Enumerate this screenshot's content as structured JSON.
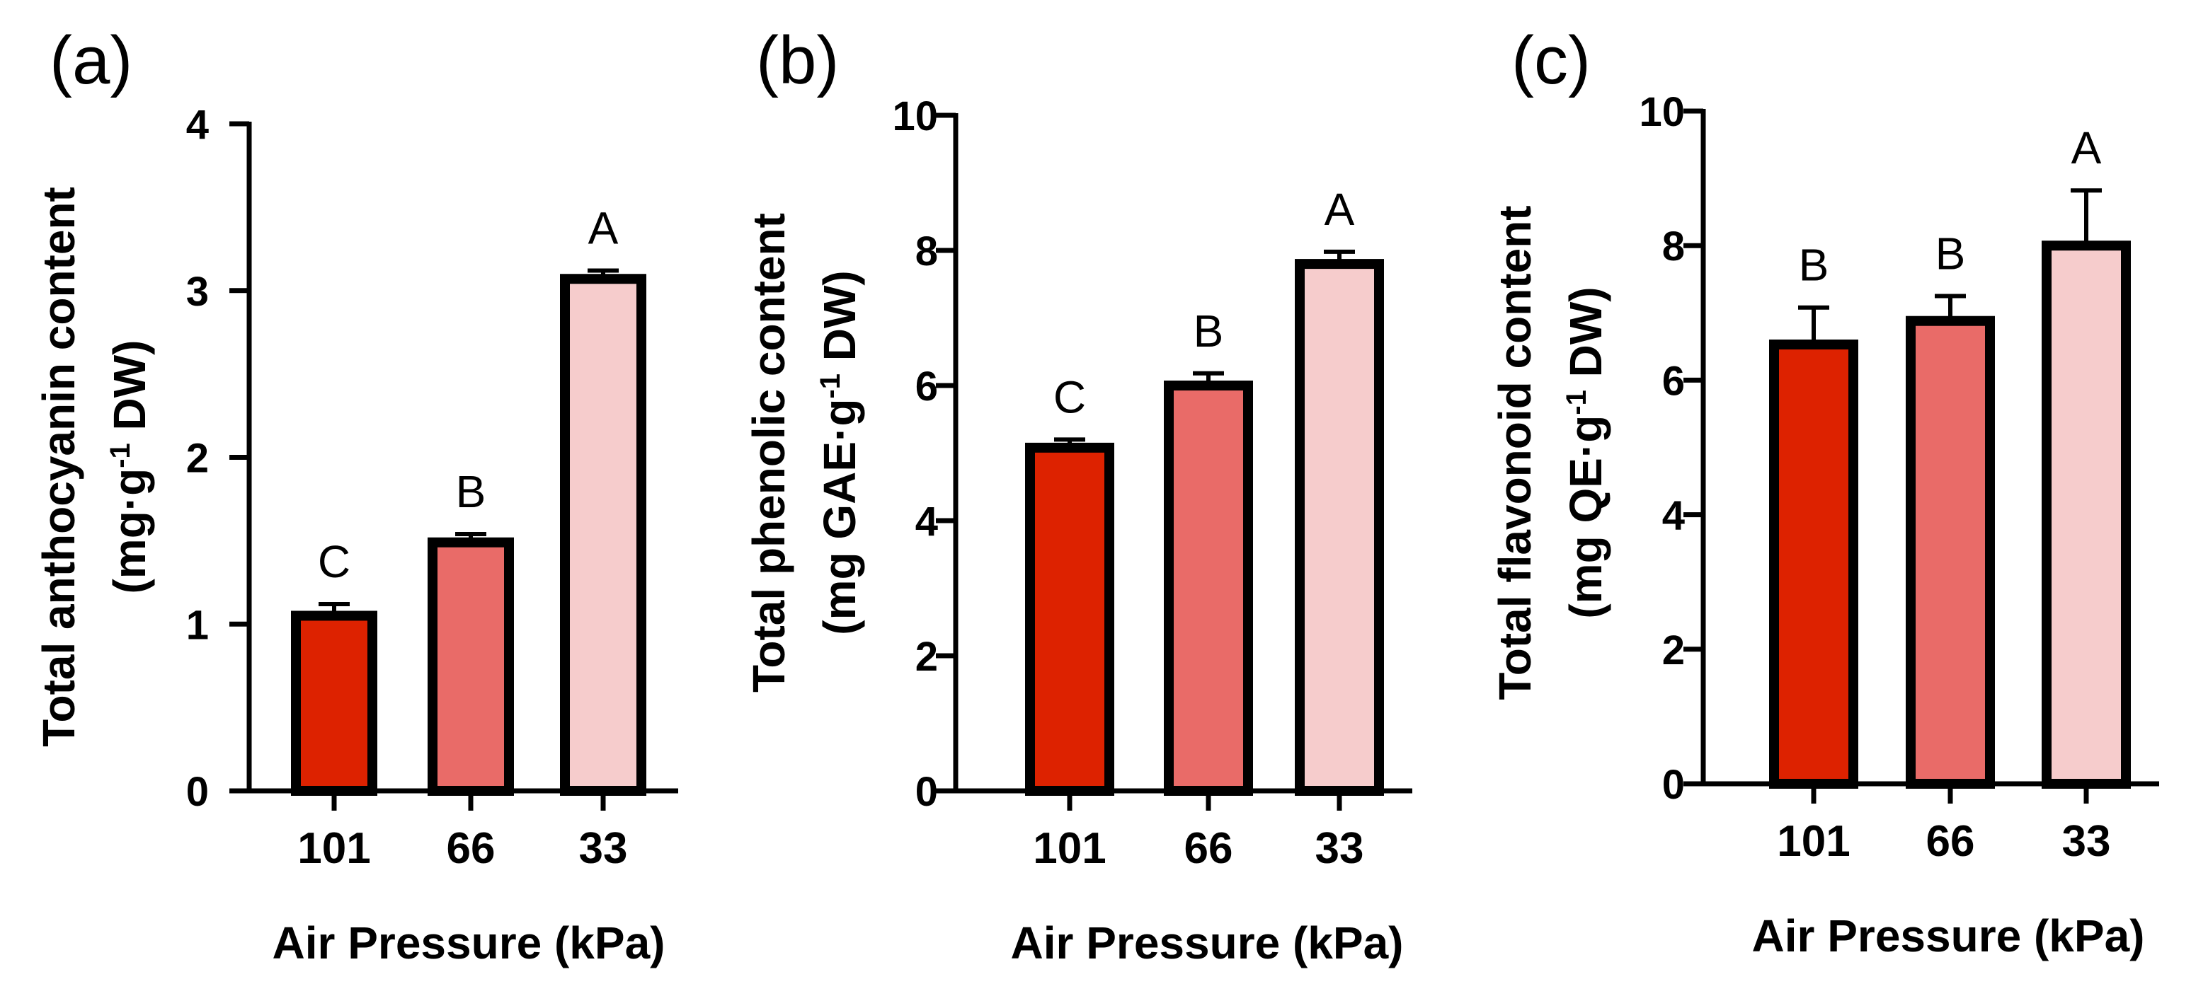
{
  "chart_data": [
    {
      "panel": "(a)",
      "type": "bar",
      "categories": [
        "101",
        "66",
        "33"
      ],
      "values": [
        1.05,
        1.49,
        3.07
      ],
      "errors": [
        0.07,
        0.05,
        0.05
      ],
      "letters": [
        "C",
        "B",
        "A"
      ],
      "ylabel_line1": "Total anthocyanin content",
      "ylabel_line2": "(mg·g",
      "ylabel_sup": "-1",
      "ylabel_line2_end": " DW)",
      "xlabel": "Air Pressure (kPa)",
      "ylim": [
        0,
        4
      ],
      "yticks": [
        "0",
        "1",
        "2",
        "3",
        "4"
      ],
      "colors": [
        "#dd2200",
        "#e96b68",
        "#f6cccc"
      ]
    },
    {
      "panel": "(b)",
      "type": "bar",
      "categories": [
        "101",
        "66",
        "33"
      ],
      "values": [
        5.08,
        6.0,
        7.8
      ],
      "errors": [
        0.12,
        0.18,
        0.18
      ],
      "letters": [
        "C",
        "B",
        "A"
      ],
      "ylabel_line1": "Total phenolic content",
      "ylabel_line2": "(mg GAE·g",
      "ylabel_sup": "-1",
      "ylabel_line2_end": " DW)",
      "xlabel": "Air Pressure (kPa)",
      "ylim": [
        0,
        10
      ],
      "yticks": [
        "0",
        "2",
        "4",
        "6",
        "8",
        "10"
      ],
      "colors": [
        "#dd2200",
        "#e96b68",
        "#f6cccc"
      ]
    },
    {
      "panel": "(c)",
      "type": "bar",
      "categories": [
        "101",
        "66",
        "33"
      ],
      "values": [
        6.53,
        6.88,
        8.0
      ],
      "errors": [
        0.55,
        0.37,
        0.82
      ],
      "letters": [
        "B",
        "B",
        "A"
      ],
      "ylabel_line1": "Total flavonoid content",
      "ylabel_line2": "(mg QE·g",
      "ylabel_sup": "-1",
      "ylabel_line2_end": " DW)",
      "xlabel": "Air Pressure (kPa)",
      "ylim": [
        0,
        10
      ],
      "yticks": [
        "0",
        "2",
        "4",
        "6",
        "8",
        "10"
      ],
      "colors": [
        "#dd2200",
        "#e96b68",
        "#f6cccc"
      ]
    }
  ]
}
